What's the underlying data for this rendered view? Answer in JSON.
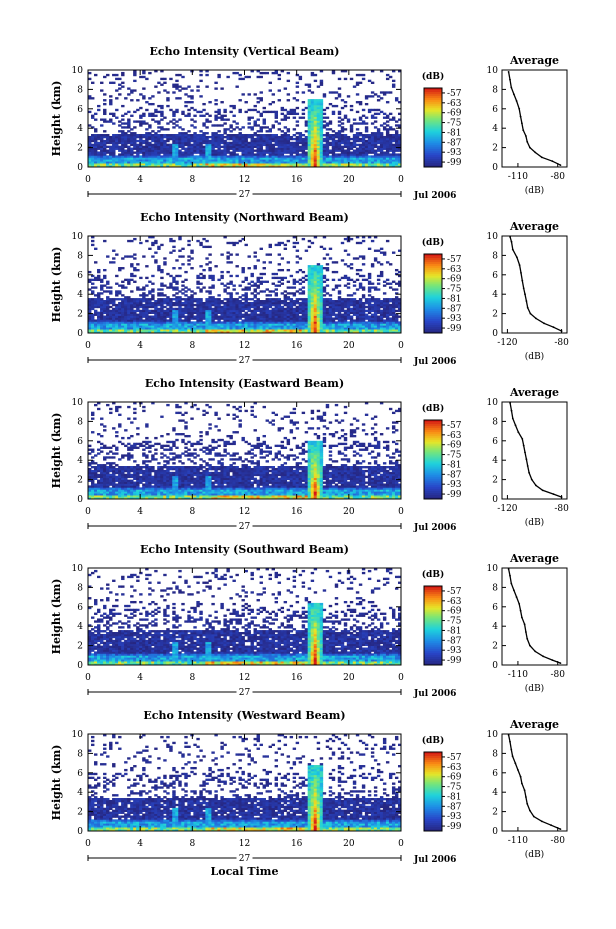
{
  "chart_data": [
    {
      "type": "heatmap",
      "title": "Echo Intensity (Vertical Beam)",
      "ylabel": "Height (km)",
      "xlabel": "",
      "x_ticks": [
        "0",
        "4",
        "8",
        "12",
        "16",
        "20",
        "0"
      ],
      "xlim": [
        0,
        24
      ],
      "y_ticks": [
        "0",
        "2",
        "4",
        "6",
        "8",
        "10"
      ],
      "ylim": [
        0,
        10
      ],
      "day_label": "27",
      "date_label": "Jul 2006",
      "colorbar": {
        "label": "(dB)",
        "ticks": [
          "-57",
          "-63",
          "-69",
          "-75",
          "-81",
          "-87",
          "-93",
          "-99"
        ]
      },
      "convective_event": {
        "local_time": 17.4,
        "top_km": 7
      },
      "noise_top_km": 3.5,
      "profile": {
        "title": "Average",
        "xlabel": "(dB)",
        "x_ticks": [
          "-110",
          "-80"
        ],
        "xlim": [
          -122,
          -73
        ],
        "y_ticks": [
          "0",
          "2",
          "4",
          "6",
          "8",
          "10"
        ],
        "ylim": [
          0,
          10
        ],
        "points": [
          [
            -78,
            0.2
          ],
          [
            -84,
            0.6
          ],
          [
            -92,
            1.0
          ],
          [
            -97,
            1.5
          ],
          [
            -101,
            2.0
          ],
          [
            -103,
            2.6
          ],
          [
            -104,
            3.2
          ],
          [
            -106,
            3.8
          ],
          [
            -107,
            4.5
          ],
          [
            -108,
            5.2
          ],
          [
            -109,
            6.0
          ],
          [
            -111,
            6.8
          ],
          [
            -113,
            7.5
          ],
          [
            -115,
            8.2
          ],
          [
            -116,
            9.0
          ],
          [
            -117,
            9.8
          ]
        ]
      }
    },
    {
      "type": "heatmap",
      "title": "Echo Intensity (Northward Beam)",
      "ylabel": "Height (km)",
      "xlabel": "",
      "x_ticks": [
        "0",
        "4",
        "8",
        "12",
        "16",
        "20",
        "0"
      ],
      "xlim": [
        0,
        24
      ],
      "y_ticks": [
        "0",
        "2",
        "4",
        "6",
        "8",
        "10"
      ],
      "ylim": [
        0,
        10
      ],
      "day_label": "27",
      "date_label": "Jul 2006",
      "colorbar": {
        "label": "(dB)",
        "ticks": [
          "-57",
          "-63",
          "-69",
          "-75",
          "-81",
          "-87",
          "-93",
          "-99"
        ]
      },
      "convective_event": {
        "local_time": 17.4,
        "top_km": 7
      },
      "noise_top_km": 3.6,
      "profile": {
        "title": "Average",
        "xlabel": "(dB)",
        "x_ticks": [
          "-120",
          "-80"
        ],
        "xlim": [
          -124,
          -76
        ],
        "y_ticks": [
          "0",
          "2",
          "4",
          "6",
          "8",
          "10"
        ],
        "ylim": [
          0,
          10
        ],
        "points": [
          [
            -80,
            0.2
          ],
          [
            -86,
            0.6
          ],
          [
            -93,
            1.0
          ],
          [
            -99,
            1.5
          ],
          [
            -103,
            2.0
          ],
          [
            -105,
            2.6
          ],
          [
            -106,
            3.3
          ],
          [
            -107,
            4.0
          ],
          [
            -108,
            4.6
          ],
          [
            -109,
            5.4
          ],
          [
            -110,
            6.2
          ],
          [
            -111,
            7.0
          ],
          [
            -113,
            7.8
          ],
          [
            -116,
            8.6
          ],
          [
            -117,
            9.4
          ],
          [
            -118,
            9.9
          ]
        ]
      }
    },
    {
      "type": "heatmap",
      "title": "Echo Intensity (Eastward Beam)",
      "ylabel": "Height (km)",
      "xlabel": "",
      "x_ticks": [
        "0",
        "4",
        "8",
        "12",
        "16",
        "20",
        "0"
      ],
      "xlim": [
        0,
        24
      ],
      "y_ticks": [
        "0",
        "2",
        "4",
        "6",
        "8",
        "10"
      ],
      "ylim": [
        0,
        10
      ],
      "day_label": "27",
      "date_label": "Jul 2006",
      "colorbar": {
        "label": "(dB)",
        "ticks": [
          "-57",
          "-63",
          "-69",
          "-75",
          "-81",
          "-87",
          "-93",
          "-99"
        ]
      },
      "convective_event": {
        "local_time": 17.4,
        "top_km": 6
      },
      "noise_top_km": 3.4,
      "profile": {
        "title": "Average",
        "xlabel": "(dB)",
        "x_ticks": [
          "-120",
          "-80"
        ],
        "xlim": [
          -124,
          -76
        ],
        "y_ticks": [
          "0",
          "2",
          "4",
          "6",
          "8",
          "10"
        ],
        "ylim": [
          0,
          10
        ],
        "points": [
          [
            -80,
            0.2
          ],
          [
            -86,
            0.5
          ],
          [
            -94,
            0.9
          ],
          [
            -99,
            1.4
          ],
          [
            -102,
            2.0
          ],
          [
            -104,
            2.7
          ],
          [
            -105,
            3.4
          ],
          [
            -106,
            4.1
          ],
          [
            -107,
            4.8
          ],
          [
            -108,
            5.5
          ],
          [
            -109,
            6.2
          ],
          [
            -112,
            6.9
          ],
          [
            -114,
            7.6
          ],
          [
            -116,
            8.3
          ],
          [
            -117,
            9.1
          ],
          [
            -118,
            9.9
          ]
        ]
      }
    },
    {
      "type": "heatmap",
      "title": "Echo Intensity (Southward Beam)",
      "ylabel": "Height (km)",
      "xlabel": "",
      "x_ticks": [
        "0",
        "4",
        "8",
        "12",
        "16",
        "20",
        "0"
      ],
      "xlim": [
        0,
        24
      ],
      "y_ticks": [
        "0",
        "2",
        "4",
        "6",
        "8",
        "10"
      ],
      "ylim": [
        0,
        10
      ],
      "day_label": "27",
      "date_label": "Jul 2006",
      "colorbar": {
        "label": "(dB)",
        "ticks": [
          "-57",
          "-63",
          "-69",
          "-75",
          "-81",
          "-87",
          "-93",
          "-99"
        ]
      },
      "convective_event": {
        "local_time": 17.4,
        "top_km": 6.5
      },
      "noise_top_km": 3.6,
      "profile": {
        "title": "Average",
        "xlabel": "(dB)",
        "x_ticks": [
          "-110",
          "-80"
        ],
        "xlim": [
          -122,
          -73
        ],
        "y_ticks": [
          "0",
          "2",
          "4",
          "6",
          "8",
          "10"
        ],
        "ylim": [
          0,
          10
        ],
        "points": [
          [
            -78,
            0.2
          ],
          [
            -84,
            0.5
          ],
          [
            -91,
            0.9
          ],
          [
            -97,
            1.4
          ],
          [
            -101,
            2.0
          ],
          [
            -103,
            2.7
          ],
          [
            -104,
            3.4
          ],
          [
            -105,
            4.2
          ],
          [
            -107,
            4.9
          ],
          [
            -108,
            5.6
          ],
          [
            -109,
            6.3
          ],
          [
            -111,
            7.0
          ],
          [
            -113,
            7.7
          ],
          [
            -115,
            8.4
          ],
          [
            -116,
            9.2
          ],
          [
            -117,
            9.9
          ]
        ]
      }
    },
    {
      "type": "heatmap",
      "title": "Echo Intensity (Westward Beam)",
      "ylabel": "Height (km)",
      "xlabel": "Local Time",
      "x_ticks": [
        "0",
        "4",
        "8",
        "12",
        "16",
        "20",
        "0"
      ],
      "xlim": [
        0,
        24
      ],
      "y_ticks": [
        "0",
        "2",
        "4",
        "6",
        "8",
        "10"
      ],
      "ylim": [
        0,
        10
      ],
      "day_label": "27",
      "date_label": "Jul 2006",
      "colorbar": {
        "label": "(dB)",
        "ticks": [
          "-57",
          "-63",
          "-69",
          "-75",
          "-81",
          "-87",
          "-93",
          "-99"
        ]
      },
      "convective_event": {
        "local_time": 17.4,
        "top_km": 6.8
      },
      "noise_top_km": 3.5,
      "profile": {
        "title": "Average",
        "xlabel": "(dB)",
        "x_ticks": [
          "-110",
          "-80"
        ],
        "xlim": [
          -122,
          -73
        ],
        "y_ticks": [
          "0",
          "2",
          "4",
          "6",
          "8",
          "10"
        ],
        "ylim": [
          0,
          10
        ],
        "points": [
          [
            -78,
            0.2
          ],
          [
            -85,
            0.6
          ],
          [
            -92,
            1.0
          ],
          [
            -98,
            1.5
          ],
          [
            -101,
            2.1
          ],
          [
            -103,
            2.8
          ],
          [
            -104,
            3.5
          ],
          [
            -105,
            4.2
          ],
          [
            -107,
            4.9
          ],
          [
            -108,
            5.6
          ],
          [
            -110,
            6.3
          ],
          [
            -112,
            7.0
          ],
          [
            -114,
            7.7
          ],
          [
            -115,
            8.4
          ],
          [
            -116,
            9.2
          ],
          [
            -117,
            9.9
          ]
        ]
      }
    }
  ]
}
